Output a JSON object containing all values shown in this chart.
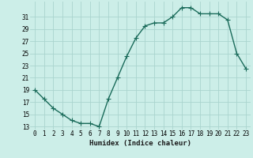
{
  "x": [
    0,
    1,
    2,
    3,
    4,
    5,
    6,
    7,
    8,
    9,
    10,
    11,
    12,
    13,
    14,
    15,
    16,
    17,
    18,
    19,
    20,
    21,
    22,
    23
  ],
  "y": [
    19,
    17.5,
    16,
    15,
    14,
    13.5,
    13.5,
    13,
    17.5,
    21,
    24.5,
    27.5,
    29.5,
    30,
    30,
    31,
    32.5,
    32.5,
    31.5,
    31.5,
    31.5,
    30.5,
    25,
    22.5
  ],
  "xlabel": "Humidex (Indice chaleur)",
  "ylabel": "",
  "ylim": [
    12.5,
    33.5
  ],
  "xlim": [
    -0.5,
    23.5
  ],
  "yticks": [
    13,
    15,
    17,
    19,
    21,
    23,
    25,
    27,
    29,
    31
  ],
  "xtick_labels": [
    "0",
    "1",
    "2",
    "3",
    "4",
    "5",
    "6",
    "7",
    "8",
    "9",
    "10",
    "11",
    "12",
    "13",
    "14",
    "15",
    "16",
    "17",
    "18",
    "19",
    "20",
    "21",
    "22",
    "23"
  ],
  "line_color": "#1a6b5a",
  "bg_color": "#cceee8",
  "grid_color": "#aad4ce",
  "marker": "+",
  "marker_size": 4,
  "line_width": 1.0,
  "label_fontsize": 6.5,
  "tick_fontsize": 5.5
}
